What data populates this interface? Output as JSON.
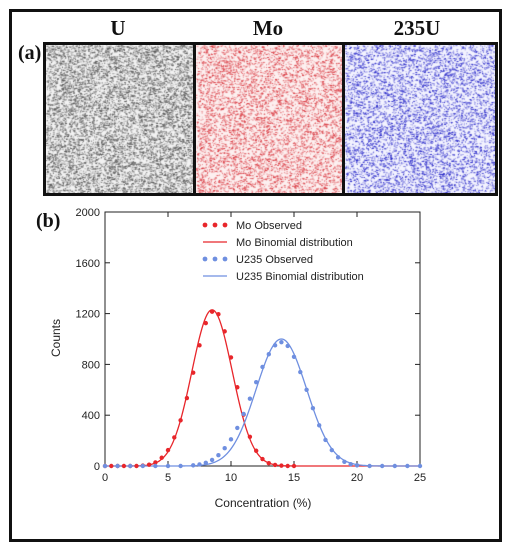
{
  "panel_a": {
    "tag": "(a)",
    "maps": [
      {
        "title": "U",
        "color": "#555555",
        "bg": "#f2f2f2"
      },
      {
        "title": "Mo",
        "color": "#d9363e",
        "bg": "#fdf0f0"
      },
      {
        "title": "235U",
        "color": "#2626c8",
        "bg": "#f3f3ff"
      }
    ]
  },
  "panel_b": {
    "tag": "(b)"
  },
  "chart_data": {
    "type": "line",
    "xlabel": "Concentration (%)",
    "ylabel": "Counts",
    "xlim": [
      0,
      25
    ],
    "ylim": [
      0,
      2000
    ],
    "x_ticks": [
      0,
      5,
      10,
      15,
      20,
      25
    ],
    "y_ticks": [
      0,
      400,
      800,
      1200,
      1600,
      2000
    ],
    "grid": false,
    "legend_position": "top-right",
    "series": [
      {
        "name": "Mo Observed",
        "style": "markers",
        "color": "#e8262b",
        "x": [
          0,
          0.5,
          1,
          1.5,
          2,
          2.5,
          3,
          3.5,
          4,
          4.5,
          5,
          5.5,
          6,
          6.5,
          7,
          7.5,
          8,
          8.5,
          9,
          9.5,
          10,
          10.5,
          11,
          11.5,
          12,
          12.5,
          13,
          13.5,
          14,
          14.5,
          15
        ],
        "y": [
          0,
          0,
          0,
          0,
          0,
          0,
          3,
          10,
          28,
          65,
          125,
          225,
          360,
          535,
          735,
          950,
          1125,
          1215,
          1195,
          1060,
          855,
          620,
          405,
          230,
          120,
          55,
          22,
          8,
          3,
          0,
          0
        ]
      },
      {
        "name": "Mo Binomial distribution",
        "style": "line",
        "color": "#e8262b",
        "mean": 8.5,
        "sd": 1.6,
        "peak": 1230
      },
      {
        "name": "U235 Observed",
        "style": "markers",
        "color": "#6f8fe0",
        "x": [
          0,
          1,
          2,
          3,
          4,
          5,
          6,
          7,
          7.5,
          8,
          8.5,
          9,
          9.5,
          10,
          10.5,
          11,
          11.5,
          12,
          12.5,
          13,
          13.5,
          14,
          14.5,
          15,
          15.5,
          16,
          16.5,
          17,
          17.5,
          18,
          18.5,
          19,
          19.5,
          20,
          21,
          22,
          23,
          24,
          25
        ],
        "y": [
          0,
          0,
          0,
          0,
          0,
          0,
          0,
          5,
          12,
          25,
          48,
          85,
          140,
          210,
          300,
          410,
          530,
          660,
          780,
          880,
          950,
          975,
          945,
          860,
          740,
          600,
          455,
          320,
          205,
          125,
          68,
          33,
          14,
          5,
          0,
          0,
          0,
          0,
          0
        ]
      },
      {
        "name": "U235 Binomial distribution",
        "style": "line",
        "color": "#6f8fe0",
        "mean": 14,
        "sd": 2.0,
        "peak": 1000
      }
    ]
  }
}
